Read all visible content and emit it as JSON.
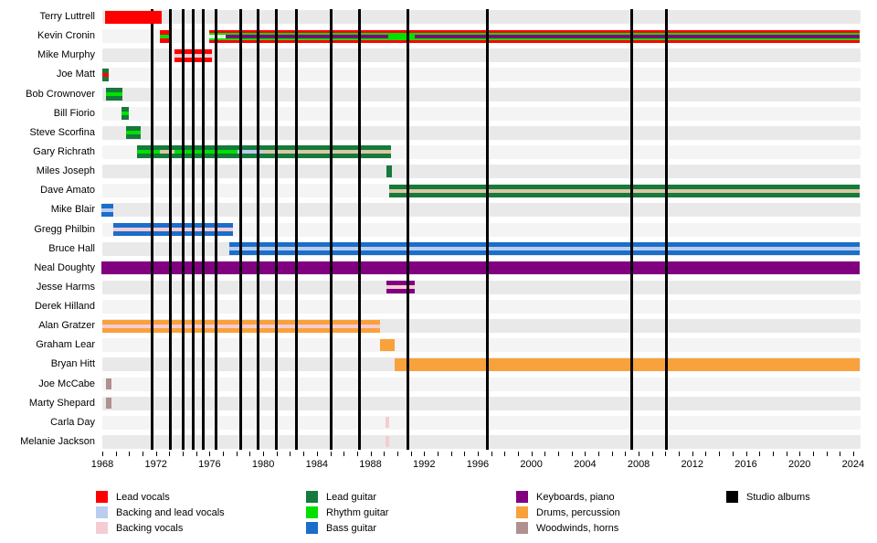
{
  "chart_data": {
    "type": "timeline",
    "description": "Band members timeline (instruments/roles per member over years) with studio album release lines",
    "x_axis": {
      "domain_start": 1968,
      "domain_end": 2024.55,
      "minor_tick_every_years": 1,
      "label_every_years": 4,
      "tick_labels": [
        "1968",
        "1972",
        "1976",
        "1980",
        "1984",
        "1988",
        "1992",
        "1996",
        "2000",
        "2004",
        "2008",
        "2012",
        "2016",
        "2020",
        "2024"
      ]
    },
    "colors": {
      "lead_vocals": "#ff0000",
      "backing_and_lead_vocals": "#b9cdee",
      "backing_vocals": "#f6ccd4",
      "backing_vocals_tan": "#dcc7a5",
      "lead_guitar": "#157a3b",
      "rhythm_guitar": "#00e100",
      "bass_guitar": "#1b6ec9",
      "keyboards_piano": "#800080",
      "drums_percussion": "#f9a13b",
      "woodwinds_horns": "#b09090",
      "studio_albums": "#000000",
      "pale": "#e9f5e4"
    },
    "album_line_years": [
      1971.7,
      1973.1,
      1974.0,
      1974.8,
      1975.5,
      1976.5,
      1978.3,
      1979.6,
      1981.0,
      1982.5,
      1985.1,
      1987.2,
      1990.8,
      1996.7,
      2007.5,
      2010.1
    ],
    "members": [
      {
        "name": "Terry Luttrell",
        "bars": [
          {
            "start": 1968.2,
            "end": 1972.4,
            "stripes": [
              "lead_vocals"
            ],
            "z": 6
          }
        ]
      },
      {
        "name": "Kevin Cronin",
        "bars": [
          {
            "start": 1972.3,
            "end": 1973.0,
            "stripes": [
              "lead_vocals",
              "rhythm_guitar",
              "lead_vocals"
            ]
          },
          {
            "start": 1976.0,
            "end": 1977.2,
            "stripes": [
              "lead_vocals",
              "rhythm_guitar",
              "pale",
              "rhythm_guitar",
              "lead_vocals"
            ]
          },
          {
            "start": 1977.2,
            "end": 1989.3,
            "stripes": [
              "lead_vocals",
              "rhythm_guitar",
              "keyboards_piano",
              "rhythm_guitar",
              "lead_vocals"
            ]
          },
          {
            "start": 1989.3,
            "end": 1991.3,
            "stripes": [
              "lead_vocals",
              "rhythm_guitar",
              "rhythm_guitar",
              "rhythm_guitar",
              "lead_vocals"
            ]
          },
          {
            "start": 1991.3,
            "end": 2024.45,
            "stripes": [
              "lead_vocals",
              "rhythm_guitar",
              "keyboards_piano",
              "rhythm_guitar",
              "lead_vocals"
            ]
          }
        ]
      },
      {
        "name": "Mike Murphy",
        "bars": [
          {
            "start": 1973.4,
            "end": 1976.2,
            "stripes": [
              "lead_vocals",
              "backing_vocals",
              "lead_vocals"
            ]
          }
        ]
      },
      {
        "name": "Joe Matt",
        "bars": [
          {
            "start": 1968.0,
            "end": 1968.45,
            "stripes": [
              "lead_guitar",
              "lead_vocals",
              "lead_guitar"
            ]
          }
        ]
      },
      {
        "name": "Bob Crownover",
        "bars": [
          {
            "start": 1968.3,
            "end": 1969.5,
            "stripes": [
              "lead_guitar",
              "rhythm_guitar",
              "lead_guitar"
            ]
          }
        ]
      },
      {
        "name": "Bill Fiorio",
        "bars": [
          {
            "start": 1969.4,
            "end": 1969.95,
            "stripes": [
              "lead_guitar",
              "rhythm_guitar",
              "lead_guitar"
            ]
          }
        ]
      },
      {
        "name": "Steve Scorfina",
        "bars": [
          {
            "start": 1969.8,
            "end": 1970.85,
            "stripes": [
              "lead_guitar",
              "rhythm_guitar",
              "lead_guitar"
            ]
          }
        ]
      },
      {
        "name": "Gary Richrath",
        "bars": [
          {
            "start": 1970.6,
            "end": 1972.3,
            "stripes": [
              "lead_guitar",
              "rhythm_guitar",
              "lead_guitar"
            ]
          },
          {
            "start": 1972.3,
            "end": 1973.4,
            "stripes": [
              "lead_guitar",
              "backing_vocals_tan",
              "lead_guitar"
            ]
          },
          {
            "start": 1973.4,
            "end": 1978.1,
            "stripes": [
              "lead_guitar",
              "rhythm_guitar",
              "lead_guitar"
            ]
          },
          {
            "start": 1978.1,
            "end": 1980.0,
            "stripes": [
              "lead_guitar",
              "backing_and_lead_vocals",
              "lead_guitar"
            ]
          },
          {
            "start": 1980.0,
            "end": 1989.5,
            "stripes": [
              "lead_guitar",
              "backing_vocals_tan",
              "lead_guitar"
            ]
          }
        ]
      },
      {
        "name": "Miles Joseph",
        "bars": [
          {
            "start": 1989.2,
            "end": 1989.6,
            "stripes": [
              "lead_guitar"
            ],
            "h": 13
          }
        ]
      },
      {
        "name": "Dave Amato",
        "bars": [
          {
            "start": 1989.4,
            "end": 2024.45,
            "stripes": [
              "lead_guitar",
              "backing_vocals_tan",
              "lead_guitar"
            ]
          }
        ]
      },
      {
        "name": "Mike Blair",
        "bars": [
          {
            "start": 1967.9,
            "end": 1968.85,
            "stripes": [
              "bass_guitar",
              "backing_and_lead_vocals",
              "bass_guitar"
            ]
          }
        ]
      },
      {
        "name": "Gregg Philbin",
        "bars": [
          {
            "start": 1968.85,
            "end": 1977.75,
            "stripes": [
              "bass_guitar",
              "backing_vocals",
              "bass_guitar"
            ]
          }
        ]
      },
      {
        "name": "Bruce Hall",
        "bars": [
          {
            "start": 1977.5,
            "end": 2024.45,
            "stripes": [
              "bass_guitar",
              "backing_and_lead_vocals",
              "bass_guitar"
            ]
          }
        ]
      },
      {
        "name": "Neal Doughty",
        "bars": [
          {
            "start": 1967.9,
            "end": 2024.45,
            "stripes": [
              "keyboards_piano"
            ]
          }
        ]
      },
      {
        "name": "Jesse Harms",
        "bars": [
          {
            "start": 1989.2,
            "end": 1991.3,
            "stripes": [
              "keyboards_piano",
              "backing_vocals",
              "keyboards_piano"
            ]
          }
        ]
      },
      {
        "name": "Derek Hilland",
        "bars": []
      },
      {
        "name": "Alan Gratzer",
        "bars": [
          {
            "start": 1968.0,
            "end": 1988.7,
            "stripes": [
              "drums_percussion",
              "backing_vocals",
              "drums_percussion"
            ]
          }
        ]
      },
      {
        "name": "Graham Lear",
        "bars": [
          {
            "start": 1988.7,
            "end": 1989.8,
            "stripes": [
              "drums_percussion"
            ],
            "h": 13
          }
        ]
      },
      {
        "name": "Bryan Hitt",
        "bars": [
          {
            "start": 1989.8,
            "end": 2024.45,
            "stripes": [
              "drums_percussion"
            ]
          }
        ]
      },
      {
        "name": "Joe McCabe",
        "bars": [
          {
            "start": 1968.3,
            "end": 1968.7,
            "stripes": [
              "woodwinds_horns"
            ],
            "h": 12
          }
        ]
      },
      {
        "name": "Marty Shepard",
        "bars": [
          {
            "start": 1968.3,
            "end": 1968.7,
            "stripes": [
              "woodwinds_horns"
            ],
            "h": 12
          }
        ]
      },
      {
        "name": "Carla Day",
        "bars": [
          {
            "start": 1989.1,
            "end": 1989.4,
            "stripes": [
              "backing_vocals"
            ],
            "h": 12
          }
        ]
      },
      {
        "name": "Melanie Jackson",
        "bars": [
          {
            "start": 1989.1,
            "end": 1989.4,
            "stripes": [
              "backing_vocals"
            ],
            "h": 12
          }
        ]
      }
    ],
    "legend": {
      "groups": [
        [
          {
            "label": "Lead vocals",
            "color": "lead_vocals"
          },
          {
            "label": "Backing and lead vocals",
            "color": "backing_and_lead_vocals"
          },
          {
            "label": "Backing vocals",
            "color": "backing_vocals"
          }
        ],
        [
          {
            "label": "Lead guitar",
            "color": "lead_guitar"
          },
          {
            "label": "Rhythm guitar",
            "color": "rhythm_guitar"
          },
          {
            "label": "Bass guitar",
            "color": "bass_guitar"
          }
        ],
        [
          {
            "label": "Keyboards, piano",
            "color": "keyboards_piano"
          },
          {
            "label": "Drums, percussion",
            "color": "drums_percussion"
          },
          {
            "label": "Woodwinds, horns",
            "color": "woodwinds_horns"
          }
        ],
        [
          {
            "label": "Studio albums",
            "color": "studio_albums"
          }
        ]
      ]
    }
  }
}
